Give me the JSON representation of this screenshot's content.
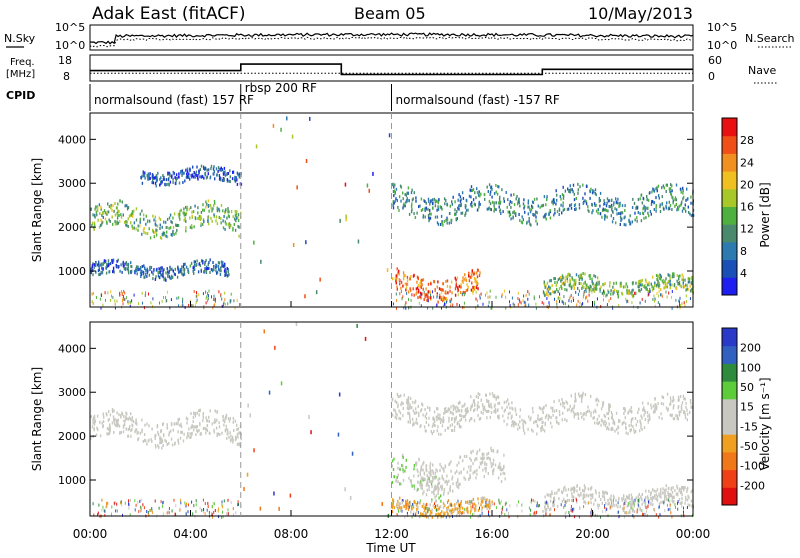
{
  "header": {
    "station": "Adak East (fitACF)",
    "beam": "Beam 05",
    "date": "10/May/2013"
  },
  "noise_panel": {
    "left_label": "N.Sky",
    "right_label": "N.Search",
    "left_ticks": [
      "10^5",
      "10^0"
    ],
    "right_ticks": [
      "10^5",
      "10^0"
    ]
  },
  "freq_panel": {
    "left_label_top": "Freq.",
    "left_label_bottom": "[MHz]",
    "right_label": "Nave",
    "left_ticks": [
      "18",
      "8"
    ],
    "right_ticks": [
      "60",
      "0"
    ],
    "freq_steps": [
      {
        "start_ut": 0.0,
        "end_ut": 6.0,
        "mhz": 12.0
      },
      {
        "start_ut": 6.0,
        "end_ut": 10.0,
        "mhz": 14.5
      },
      {
        "start_ut": 10.0,
        "end_ut": 18.0,
        "mhz": 10.5
      },
      {
        "start_ut": 18.0,
        "end_ut": 24.0,
        "mhz": 12.5
      }
    ],
    "nave_level": 18
  },
  "cpid": {
    "label": "CPID",
    "segments": [
      {
        "start_ut": 0.0,
        "text": "normalsound (fast) 157 RF"
      },
      {
        "start_ut": 6.0,
        "text": "rbsp 200 RF"
      },
      {
        "start_ut": 12.0,
        "text": "normalsound (fast) -157 RF"
      }
    ]
  },
  "colors": {
    "power_scale": [
      "#1e1ef0",
      "#1a4fb8",
      "#2d7ab0",
      "#4a8a6c",
      "#4fb040",
      "#a8c82a",
      "#f0c020",
      "#f09020",
      "#f05018",
      "#e81010"
    ],
    "velocity_scale": [
      "#2a3ac8",
      "#3060c0",
      "#2e8a3c",
      "#5ccc3a",
      "#c8c8c0",
      "#c8c8c0",
      "#f0a020",
      "#f07818",
      "#f04018",
      "#e01010"
    ]
  },
  "chart_data": [
    {
      "type": "heatmap",
      "title": "",
      "xlabel": "Time UT",
      "ylabel": "Slant Range [km]",
      "xlim": [
        0,
        24
      ],
      "ylim": [
        180,
        4600
      ],
      "x_ticks": [
        "00:00",
        "04:00",
        "08:00",
        "12:00",
        "16:00",
        "20:00",
        "00:00"
      ],
      "y_ticks": [
        "1000",
        "2000",
        "3000",
        "4000"
      ],
      "colorbar": {
        "label": "Power [dB]",
        "range": [
          0,
          32
        ],
        "ticks": [
          "4",
          "8",
          "12",
          "16",
          "20",
          "24",
          "28"
        ]
      },
      "echo_regions": [
        {
          "ut_start": 0.0,
          "ut_end": 6.0,
          "range_center_km": 2200,
          "range_halfwidth_km": 280,
          "power_db": 14
        },
        {
          "ut_start": 2.0,
          "ut_end": 6.0,
          "range_center_km": 3200,
          "range_halfwidth_km": 150,
          "power_db": 6
        },
        {
          "ut_start": 0.0,
          "ut_end": 5.5,
          "range_center_km": 1050,
          "range_halfwidth_km": 150,
          "power_db": 7
        },
        {
          "ut_start": 12.0,
          "ut_end": 15.5,
          "range_center_km": 700,
          "range_halfwidth_km": 250,
          "power_db": 26
        },
        {
          "ut_start": 12.0,
          "ut_end": 24.0,
          "range_center_km": 2550,
          "range_halfwidth_km": 300,
          "power_db": 10
        },
        {
          "ut_start": 18.0,
          "ut_end": 24.0,
          "range_center_km": 700,
          "range_halfwidth_km": 180,
          "power_db": 15
        }
      ]
    },
    {
      "type": "heatmap",
      "title": "",
      "xlabel": "Time UT",
      "ylabel": "Slant Range [km]",
      "xlim": [
        0,
        24
      ],
      "ylim": [
        180,
        4600
      ],
      "x_ticks": [
        "00:00",
        "04:00",
        "08:00",
        "12:00",
        "16:00",
        "20:00",
        "00:00"
      ],
      "y_ticks": [
        "1000",
        "2000",
        "3000",
        "4000"
      ],
      "colorbar": {
        "label": "Velocity [m s⁻¹]",
        "range": [
          -250,
          250
        ],
        "ticks": [
          "200",
          "100",
          "50",
          "15",
          "-15",
          "-50",
          "-100",
          "-200"
        ]
      },
      "echo_regions": [
        {
          "ut_start": 0.0,
          "ut_end": 6.0,
          "range_center_km": 2200,
          "range_halfwidth_km": 280,
          "velocity_ms": 0
        },
        {
          "ut_start": 12.0,
          "ut_end": 14.0,
          "range_center_km": 1100,
          "range_halfwidth_km": 350,
          "velocity_ms": 40
        },
        {
          "ut_start": 13.0,
          "ut_end": 16.5,
          "range_center_km": 1250,
          "range_halfwidth_km": 350,
          "velocity_ms": 0
        },
        {
          "ut_start": 12.0,
          "ut_end": 16.0,
          "range_center_km": 400,
          "range_halfwidth_km": 150,
          "velocity_ms": -60
        },
        {
          "ut_start": 12.0,
          "ut_end": 24.0,
          "range_center_km": 2550,
          "range_halfwidth_km": 300,
          "velocity_ms": 0
        },
        {
          "ut_start": 18.0,
          "ut_end": 24.0,
          "range_center_km": 600,
          "range_halfwidth_km": 200,
          "velocity_ms": -10
        }
      ]
    }
  ]
}
